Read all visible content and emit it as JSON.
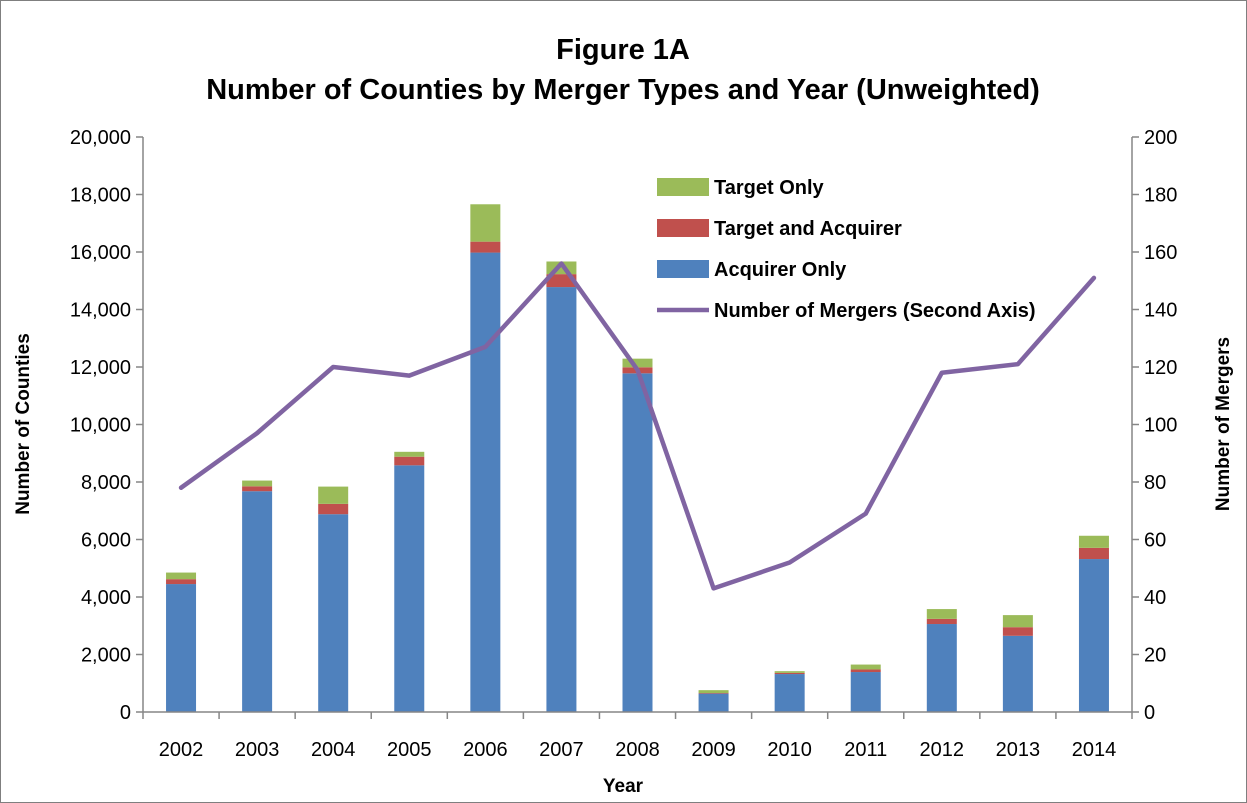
{
  "chart_data": {
    "type": "bar",
    "title_line1": "Figure 1A",
    "title_line2": "Number of Counties by Merger Types and Year (Unweighted)",
    "xlabel": "Year",
    "ylabel": "Number of Counties",
    "y2label": "Number of Mergers",
    "categories": [
      "2002",
      "2003",
      "2004",
      "2005",
      "2006",
      "2007",
      "2008",
      "2009",
      "2010",
      "2011",
      "2012",
      "2013",
      "2014"
    ],
    "ylim": [
      0,
      20000
    ],
    "y2lim": [
      0,
      200
    ],
    "y_ticks": [
      "0",
      "2,000",
      "4,000",
      "6,000",
      "8,000",
      "10,000",
      "12,000",
      "14,000",
      "16,000",
      "18,000",
      "20,000"
    ],
    "y2_ticks": [
      "0",
      "20",
      "40",
      "60",
      "80",
      "100",
      "120",
      "140",
      "160",
      "180",
      "200"
    ],
    "grid": false,
    "legend_position": "top-right",
    "stacked": true,
    "series": [
      {
        "name": "Acquirer Only",
        "color": "#4f81bd",
        "axis": "left",
        "kind": "bar",
        "values": [
          4450,
          7680,
          6880,
          8580,
          15980,
          14780,
          11780,
          640,
          1320,
          1390,
          3060,
          2650,
          5320
        ]
      },
      {
        "name": "Target and Acquirer",
        "color": "#c0504d",
        "axis": "left",
        "kind": "bar",
        "values": [
          170,
          170,
          360,
          300,
          380,
          450,
          210,
          20,
          40,
          90,
          180,
          300,
          390
        ]
      },
      {
        "name": "Target Only",
        "color": "#9bbb59",
        "axis": "left",
        "kind": "bar",
        "values": [
          230,
          200,
          600,
          170,
          1300,
          440,
          300,
          100,
          60,
          170,
          340,
          420,
          420
        ]
      },
      {
        "name": "Number of Mergers (Second Axis)",
        "color": "#8064a2",
        "axis": "right",
        "kind": "line",
        "values": [
          78,
          97,
          120,
          117,
          127,
          156,
          119,
          43,
          52,
          69,
          118,
          121,
          151
        ]
      }
    ],
    "legend_order": [
      "Target Only",
      "Target and Acquirer",
      "Acquirer Only",
      "Number of Mergers (Second Axis)"
    ]
  }
}
